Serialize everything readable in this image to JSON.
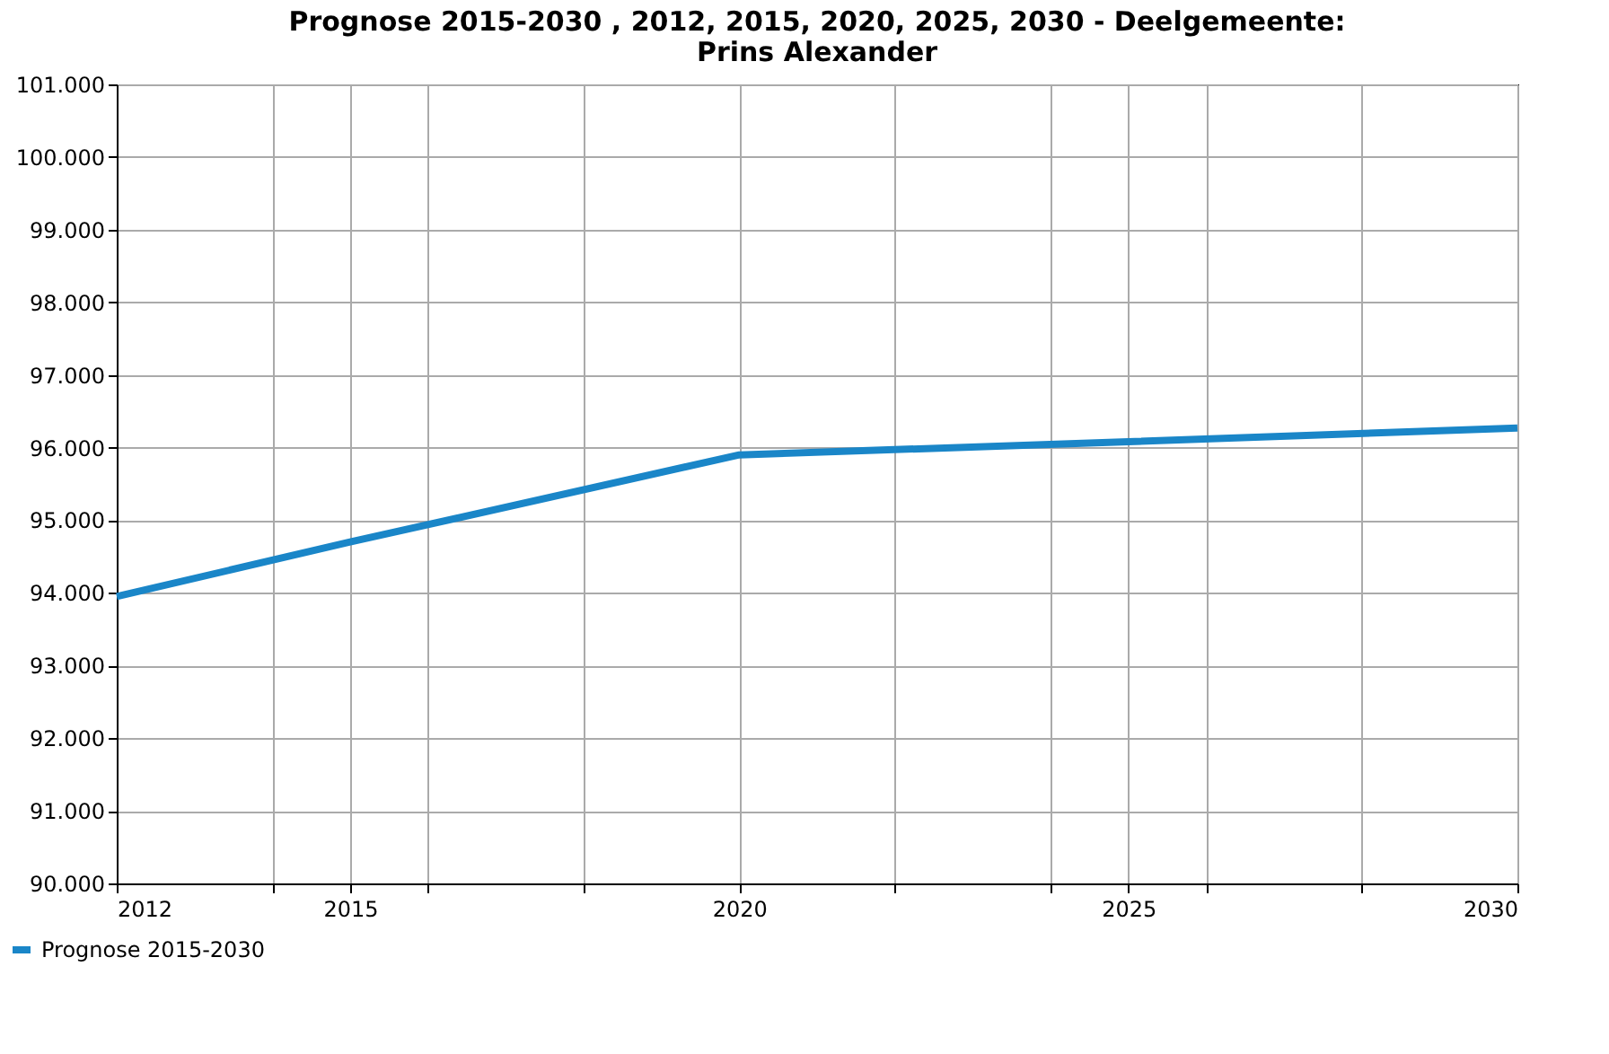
{
  "chart_data": {
    "type": "line",
    "title": "Prognose 2015-2030 , 2012, 2015, 2020, 2025, 2030 - Deelgemeente: Prins Alexander",
    "x": [
      2012,
      2015,
      2020,
      2025,
      2030
    ],
    "series": [
      {
        "name": "Prognose 2015-2030",
        "color": "#1a86c8",
        "values": [
          93950,
          94700,
          95900,
          96080,
          96270
        ]
      }
    ],
    "xlim": [
      2012,
      2030
    ],
    "xticks": [
      2012,
      {
        "value": 2014,
        "label": null
      },
      2015,
      {
        "value": 2016,
        "label": null
      },
      {
        "value": 2018,
        "label": null
      },
      2020,
      {
        "value": 2022,
        "label": null
      },
      {
        "value": 2024,
        "label": null
      },
      2025,
      {
        "value": 2026,
        "label": null
      },
      {
        "value": 2028,
        "label": null
      },
      2030
    ],
    "ylim": [
      90000,
      101000
    ],
    "yticks": [
      {
        "value": 90000,
        "label": "90.000"
      },
      {
        "value": 91000,
        "label": "91.000"
      },
      {
        "value": 92000,
        "label": "92.000"
      },
      {
        "value": 93000,
        "label": "93.000"
      },
      {
        "value": 94000,
        "label": "94.000"
      },
      {
        "value": 95000,
        "label": "95.000"
      },
      {
        "value": 96000,
        "label": "96.000"
      },
      {
        "value": 97000,
        "label": "97.000"
      },
      {
        "value": 98000,
        "label": "98.000"
      },
      {
        "value": 99000,
        "label": "99.000"
      },
      {
        "value": 100000,
        "label": "100.000"
      },
      {
        "value": 101000,
        "label": "101.000"
      }
    ],
    "grid": true,
    "legend": "bottom left",
    "marker": "none",
    "line_style": "solid"
  }
}
